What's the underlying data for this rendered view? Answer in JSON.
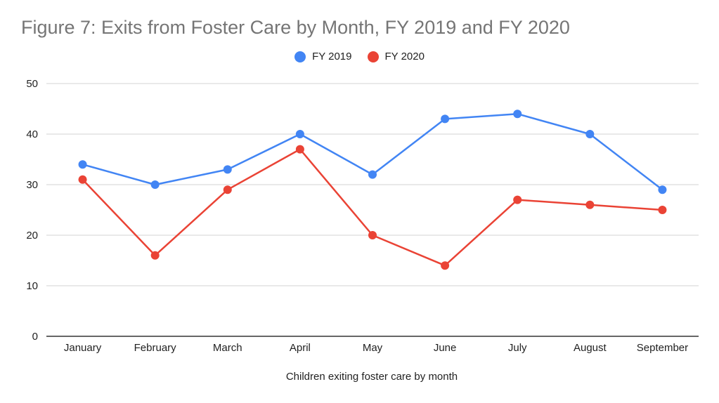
{
  "chart_data": {
    "type": "line",
    "title": "Figure 7: Exits from Foster Care by Month, FY 2019 and FY 2020",
    "xlabel": "Children exiting foster care by month",
    "ylabel": "",
    "categories": [
      "January",
      "February",
      "March",
      "April",
      "May",
      "June",
      "July",
      "August",
      "September"
    ],
    "series": [
      {
        "name": "FY 2019",
        "color": "#4285f4",
        "values": [
          34,
          30,
          33,
          40,
          32,
          43,
          44,
          40,
          29
        ]
      },
      {
        "name": "FY 2020",
        "color": "#ea4335",
        "values": [
          31,
          16,
          29,
          37,
          20,
          14,
          27,
          26,
          25
        ]
      }
    ],
    "ylim": [
      0,
      50
    ],
    "yticks": [
      0,
      10,
      20,
      30,
      40,
      50
    ],
    "grid": true,
    "legend_position": "top-center",
    "colors": {
      "title": "#757575",
      "gridline": "#d3d3d3",
      "baseline": "#333333",
      "text": "#222222"
    }
  }
}
